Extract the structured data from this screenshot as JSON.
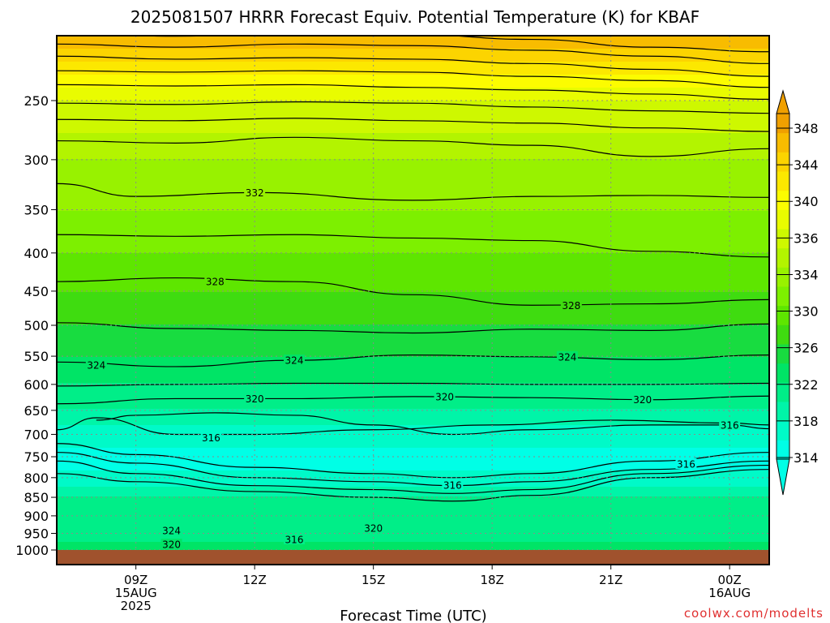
{
  "title": "2025081507 HRRR Forecast Equiv. Potential Temperature (K) for KBAF",
  "credit": "coolwx.com/modelts",
  "colors": {
    "ground": "#a0522d",
    "contour": "#000000",
    "grid": "#8a8a8a"
  },
  "chart_data": {
    "type": "heatmap",
    "title": "2025081507 HRRR Forecast Equiv. Potential Temperature (K) for KBAF",
    "xlabel": "Forecast Time (UTC)",
    "ylabel": "",
    "y_scale": "log (pressure, hPa, inverted)",
    "grid": true,
    "x_ticks": [
      {
        "hour": 9,
        "lines": [
          "09Z",
          "15AUG",
          "2025"
        ]
      },
      {
        "hour": 12,
        "lines": [
          "12Z"
        ]
      },
      {
        "hour": 15,
        "lines": [
          "15Z"
        ]
      },
      {
        "hour": 18,
        "lines": [
          "18Z"
        ]
      },
      {
        "hour": 21,
        "lines": [
          "21Z"
        ]
      },
      {
        "hour": 24,
        "lines": [
          "00Z",
          "16AUG"
        ]
      }
    ],
    "xlim": [
      7,
      25
    ],
    "y_ticks": [
      250,
      300,
      350,
      400,
      450,
      500,
      550,
      600,
      650,
      700,
      750,
      800,
      850,
      900,
      950,
      1000
    ],
    "ylim": [
      1000,
      200
    ],
    "colorbar": {
      "labels": [
        314,
        318,
        322,
        326,
        330,
        334,
        336,
        340,
        344,
        348
      ],
      "bounds": [
        314,
        316,
        318,
        320,
        322,
        324,
        326,
        328,
        330,
        332,
        334,
        336,
        338,
        340,
        342,
        344,
        346,
        348
      ],
      "colors": [
        "#00ffe6",
        "#00fac8",
        "#00f5a8",
        "#00ee88",
        "#00e466",
        "#18dc40",
        "#3fdc10",
        "#5ee600",
        "#7df000",
        "#98f200",
        "#b3f400",
        "#cef800",
        "#e9fc00",
        "#fcfc00",
        "#fce800",
        "#fcd400",
        "#f8bc00",
        "#f0a000"
      ],
      "extend": "both"
    },
    "contour_labels": [
      {
        "text": "332",
        "x": 12.0,
        "p": 332
      },
      {
        "text": "328",
        "x": 11.0,
        "p": 437
      },
      {
        "text": "328",
        "x": 20.0,
        "p": 470
      },
      {
        "text": "324",
        "x": 8.0,
        "p": 565
      },
      {
        "text": "324",
        "x": 13.0,
        "p": 557
      },
      {
        "text": "324",
        "x": 19.9,
        "p": 551
      },
      {
        "text": "320",
        "x": 12.0,
        "p": 627
      },
      {
        "text": "320",
        "x": 16.8,
        "p": 623
      },
      {
        "text": "320",
        "x": 21.8,
        "p": 629
      },
      {
        "text": "316",
        "x": 10.9,
        "p": 707
      },
      {
        "text": "316",
        "x": 24.0,
        "p": 680
      },
      {
        "text": "316",
        "x": 22.9,
        "p": 767
      },
      {
        "text": "316",
        "x": 17.0,
        "p": 819
      },
      {
        "text": "324",
        "x": 9.9,
        "p": 942
      },
      {
        "text": "320",
        "x": 9.9,
        "p": 983
      },
      {
        "text": "320",
        "x": 15.0,
        "p": 935
      },
      {
        "text": "316",
        "x": 13.0,
        "p": 968
      }
    ],
    "contour_lines": [
      {
        "x": [
          7,
          10,
          13,
          16,
          19,
          22,
          25
        ],
        "p": [
          202,
          205,
          203,
          204,
          207,
          212,
          215
        ]
      },
      {
        "x": [
          7,
          10,
          13,
          16,
          19,
          22,
          25
        ],
        "p": [
          210,
          212,
          210,
          211,
          214,
          218,
          223
        ]
      },
      {
        "x": [
          7,
          10,
          13,
          16,
          19,
          22,
          25
        ],
        "p": [
          218,
          220,
          219,
          220,
          223,
          227,
          232
        ]
      },
      {
        "x": [
          7,
          10,
          13,
          16,
          19,
          22,
          25
        ],
        "p": [
          228,
          229,
          228,
          229,
          232,
          235,
          240
        ]
      },
      {
        "x": [
          7,
          10,
          13,
          16,
          19,
          22,
          25
        ],
        "p": [
          238,
          239,
          238,
          240,
          242,
          245,
          249
        ]
      },
      {
        "x": [
          7,
          10,
          13,
          16,
          19,
          22,
          25
        ],
        "p": [
          252,
          253,
          251,
          252,
          255,
          258,
          260
        ]
      },
      {
        "x": [
          7,
          10,
          13,
          16,
          19,
          22,
          25
        ],
        "p": [
          265,
          266,
          264,
          266,
          268,
          272,
          275
        ]
      },
      {
        "x": [
          7,
          10,
          13,
          16,
          19,
          22,
          25
        ],
        "p": [
          283,
          285,
          280,
          283,
          287,
          297,
          290
        ]
      },
      {
        "x": [
          7,
          9,
          12,
          16,
          19,
          22,
          25
        ],
        "p": [
          323,
          336,
          332,
          340,
          336,
          335,
          337
        ]
      },
      {
        "x": [
          7,
          10,
          13,
          16,
          19,
          22,
          25
        ],
        "p": [
          378,
          380,
          378,
          382,
          385,
          398,
          405
        ]
      },
      {
        "x": [
          7,
          10,
          13,
          16,
          19,
          22,
          25
        ],
        "p": [
          437,
          432,
          437,
          455,
          470,
          468,
          462
        ]
      },
      {
        "x": [
          7,
          10,
          13,
          16,
          19,
          22,
          25
        ],
        "p": [
          496,
          505,
          508,
          512,
          506,
          508,
          498
        ]
      },
      {
        "x": [
          7,
          10,
          13,
          16,
          19,
          22,
          25
        ],
        "p": [
          560,
          568,
          557,
          548,
          551,
          556,
          548
        ]
      },
      {
        "x": [
          7,
          10,
          13,
          16,
          19,
          22,
          25
        ],
        "p": [
          603,
          600,
          598,
          598,
          600,
          600,
          598
        ]
      },
      {
        "x": [
          7,
          10,
          13,
          16,
          19,
          22,
          25
        ],
        "p": [
          637,
          627,
          627,
          623,
          625,
          629,
          622
        ]
      },
      {
        "x": [
          7,
          8,
          10,
          12,
          15,
          18,
          21,
          24,
          25
        ],
        "p": [
          690,
          665,
          700,
          700,
          690,
          680,
          670,
          676,
          680
        ]
      },
      {
        "x": [
          8,
          9,
          11,
          13,
          15,
          17,
          19,
          22,
          24,
          25
        ],
        "p": [
          670,
          660,
          655,
          660,
          680,
          700,
          690,
          680,
          680,
          688
        ]
      },
      {
        "x": [
          7,
          9,
          12,
          15,
          17,
          19,
          22,
          25
        ],
        "p": [
          720,
          745,
          775,
          790,
          800,
          790,
          760,
          740
        ]
      },
      {
        "x": [
          7,
          9,
          12,
          15,
          17,
          19,
          22,
          25
        ],
        "p": [
          740,
          765,
          800,
          810,
          820,
          810,
          780,
          760
        ]
      },
      {
        "x": [
          7,
          9,
          12,
          15,
          17,
          19,
          22,
          25
        ],
        "p": [
          760,
          790,
          820,
          830,
          840,
          830,
          790,
          770
        ]
      },
      {
        "x": [
          7,
          9,
          12,
          15,
          17,
          19,
          22,
          25
        ],
        "p": [
          790,
          810,
          835,
          850,
          860,
          845,
          800,
          780
        ]
      }
    ]
  }
}
